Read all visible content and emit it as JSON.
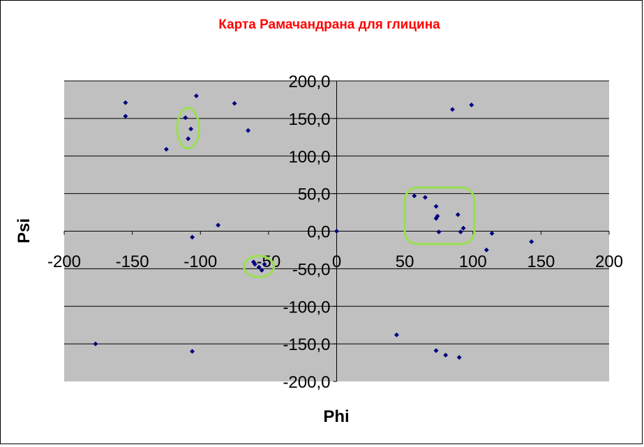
{
  "chart_data": {
    "type": "scatter",
    "title": "Карта Рамачандрана для глицина",
    "xlabel": "Phi",
    "ylabel": "Psi",
    "xlim": [
      -200,
      200
    ],
    "ylim": [
      -200,
      200
    ],
    "x_ticks": [
      -200,
      -150,
      -100,
      -50,
      0,
      50,
      100,
      150,
      200
    ],
    "x_tick_labels": [
      "-200",
      "-150",
      "-100",
      "-50",
      "0",
      "50",
      "100",
      "150",
      "200"
    ],
    "y_ticks": [
      200,
      150,
      100,
      50,
      0,
      -50,
      -100,
      -150,
      -200
    ],
    "y_tick_labels": [
      "200,0",
      "150,0",
      "100,0",
      "50,0",
      "0,0",
      "-50,0",
      "-100,0",
      "-150,0",
      "-200,0"
    ],
    "grid": true,
    "legend": "none",
    "points": [
      {
        "x": -155,
        "y": 171
      },
      {
        "x": -155,
        "y": 153
      },
      {
        "x": -103,
        "y": 180
      },
      {
        "x": -75,
        "y": 170
      },
      {
        "x": -111,
        "y": 151
      },
      {
        "x": -107,
        "y": 136
      },
      {
        "x": -109,
        "y": 123
      },
      {
        "x": -125,
        "y": 109
      },
      {
        "x": -65,
        "y": 134
      },
      {
        "x": -87,
        "y": 8
      },
      {
        "x": -106,
        "y": -8
      },
      {
        "x": -177,
        "y": -150
      },
      {
        "x": -106,
        "y": -160
      },
      {
        "x": -60,
        "y": -44
      },
      {
        "x": -57,
        "y": -48
      },
      {
        "x": -55,
        "y": -52
      },
      {
        "x": -53,
        "y": -44
      },
      {
        "x": -61,
        "y": -41
      },
      {
        "x": 0,
        "y": 0
      },
      {
        "x": 57,
        "y": 47
      },
      {
        "x": 65,
        "y": 45
      },
      {
        "x": 73,
        "y": 33
      },
      {
        "x": 74,
        "y": 20
      },
      {
        "x": 73,
        "y": 17
      },
      {
        "x": 75,
        "y": -1
      },
      {
        "x": 89,
        "y": 22
      },
      {
        "x": 91,
        "y": -1
      },
      {
        "x": 93,
        "y": 4
      },
      {
        "x": 85,
        "y": 162
      },
      {
        "x": 99,
        "y": 168
      },
      {
        "x": 114,
        "y": -3
      },
      {
        "x": 110,
        "y": -25
      },
      {
        "x": 143,
        "y": -14
      },
      {
        "x": 44,
        "y": -138
      },
      {
        "x": 73,
        "y": -159
      },
      {
        "x": 80,
        "y": -165
      },
      {
        "x": 90,
        "y": -168
      }
    ],
    "highlights": [
      {
        "shape": "ellipse",
        "cx": -109,
        "cy": 137,
        "rx": 8,
        "ry": 27
      },
      {
        "shape": "ellipse",
        "cx": -57,
        "cy": -47,
        "rx": 11,
        "ry": 14
      },
      {
        "shape": "rounded-rect",
        "x1": 50,
        "y1": 58,
        "x2": 101,
        "y2": -17
      }
    ],
    "colors": {
      "title": "#ff0000",
      "plot_bg": "#c0c0c0",
      "marker": "#000080",
      "highlight": "#99e04d",
      "grid": "#000000"
    }
  }
}
